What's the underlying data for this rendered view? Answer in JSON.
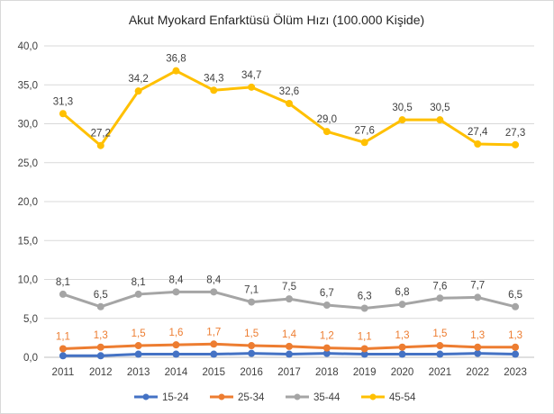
{
  "chart_data": {
    "type": "line",
    "title": "Akut Myokard Enfarktüsü Ölüm Hızı (100.000 Kişide)",
    "xlabel": "",
    "ylabel": "",
    "ylim": [
      0,
      40
    ],
    "yticks": [
      "0,0",
      "5,0",
      "10,0",
      "15,0",
      "20,0",
      "25,0",
      "30,0",
      "35,0",
      "40,0"
    ],
    "grid": true,
    "legend_position": "bottom",
    "categories": [
      "2011",
      "2012",
      "2013",
      "2014",
      "2015",
      "2016",
      "2017",
      "2018",
      "2019",
      "2020",
      "2021",
      "2022",
      "2023"
    ],
    "series": [
      {
        "name": "15-24",
        "color": "#4472c4",
        "values": [
          0.2,
          0.2,
          0.4,
          0.4,
          0.4,
          0.5,
          0.4,
          0.5,
          0.4,
          0.4,
          0.4,
          0.5,
          0.4
        ],
        "labels": null
      },
      {
        "name": "25-34",
        "color": "#ed7d31",
        "values": [
          1.1,
          1.3,
          1.5,
          1.6,
          1.7,
          1.5,
          1.4,
          1.2,
          1.1,
          1.3,
          1.5,
          1.3,
          1.3
        ],
        "labels": [
          "1,1",
          "1,3",
          "1,5",
          "1,6",
          "1,7",
          "1,5",
          "1,4",
          "1,2",
          "1,1",
          "1,3",
          "1,5",
          "1,3",
          "1,3"
        ]
      },
      {
        "name": "35-44",
        "color": "#a5a5a5",
        "values": [
          8.1,
          6.5,
          8.1,
          8.4,
          8.4,
          7.1,
          7.5,
          6.7,
          6.3,
          6.8,
          7.6,
          7.7,
          6.5
        ],
        "labels": [
          "8,1",
          "6,5",
          "8,1",
          "8,4",
          "8,4",
          "7,1",
          "7,5",
          "6,7",
          "6,3",
          "6,8",
          "7,6",
          "7,7",
          "6,5"
        ]
      },
      {
        "name": "45-54",
        "color": "#ffc000",
        "values": [
          31.3,
          27.2,
          34.2,
          36.8,
          34.3,
          34.7,
          32.6,
          29.0,
          27.6,
          30.5,
          30.5,
          27.4,
          27.3
        ],
        "labels": [
          "31,3",
          "27,2",
          "34,2",
          "36,8",
          "34,3",
          "34,7",
          "32,6",
          "29,0",
          "27,6",
          "30,5",
          "30,5",
          "27,4",
          "27,3"
        ]
      }
    ]
  }
}
